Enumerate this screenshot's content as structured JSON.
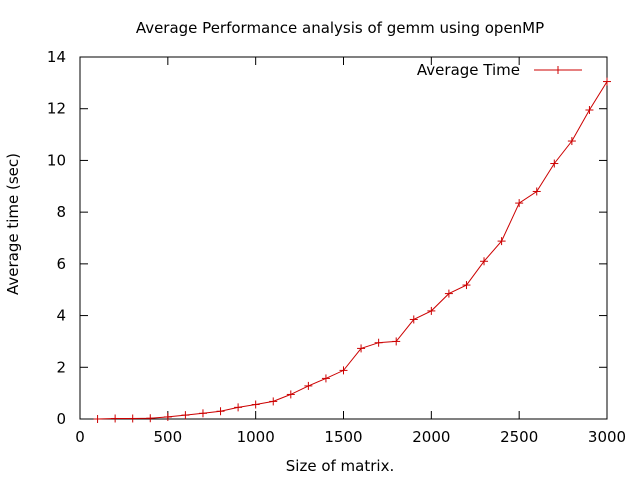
{
  "chart_data": {
    "type": "line",
    "title": "Average Performance analysis of gemm using openMP",
    "xlabel": "Size of matrix.",
    "ylabel": "Average time (sec)",
    "xlim": [
      0,
      3000
    ],
    "ylim": [
      0,
      14
    ],
    "xticks": [
      0,
      500,
      1000,
      1500,
      2000,
      2500,
      3000
    ],
    "yticks": [
      0,
      2,
      4,
      6,
      8,
      10,
      12,
      14
    ],
    "grid": false,
    "legend_position": "top-right",
    "series": [
      {
        "name": "Average Time",
        "color": "#cc0000",
        "marker": "plus",
        "x": [
          100,
          200,
          300,
          400,
          500,
          600,
          700,
          800,
          900,
          1000,
          1100,
          1200,
          1300,
          1400,
          1500,
          1600,
          1700,
          1800,
          1900,
          2000,
          2100,
          2200,
          2300,
          2400,
          2500,
          2600,
          2700,
          2800,
          2900,
          3000
        ],
        "y": [
          0.0,
          0.02,
          0.02,
          0.03,
          0.08,
          0.15,
          0.22,
          0.3,
          0.45,
          0.56,
          0.68,
          0.95,
          1.28,
          1.57,
          1.88,
          2.73,
          2.95,
          3.0,
          3.85,
          4.18,
          4.85,
          5.18,
          6.1,
          6.88,
          8.35,
          8.8,
          9.88,
          10.75,
          11.95,
          13.05
        ]
      }
    ]
  }
}
